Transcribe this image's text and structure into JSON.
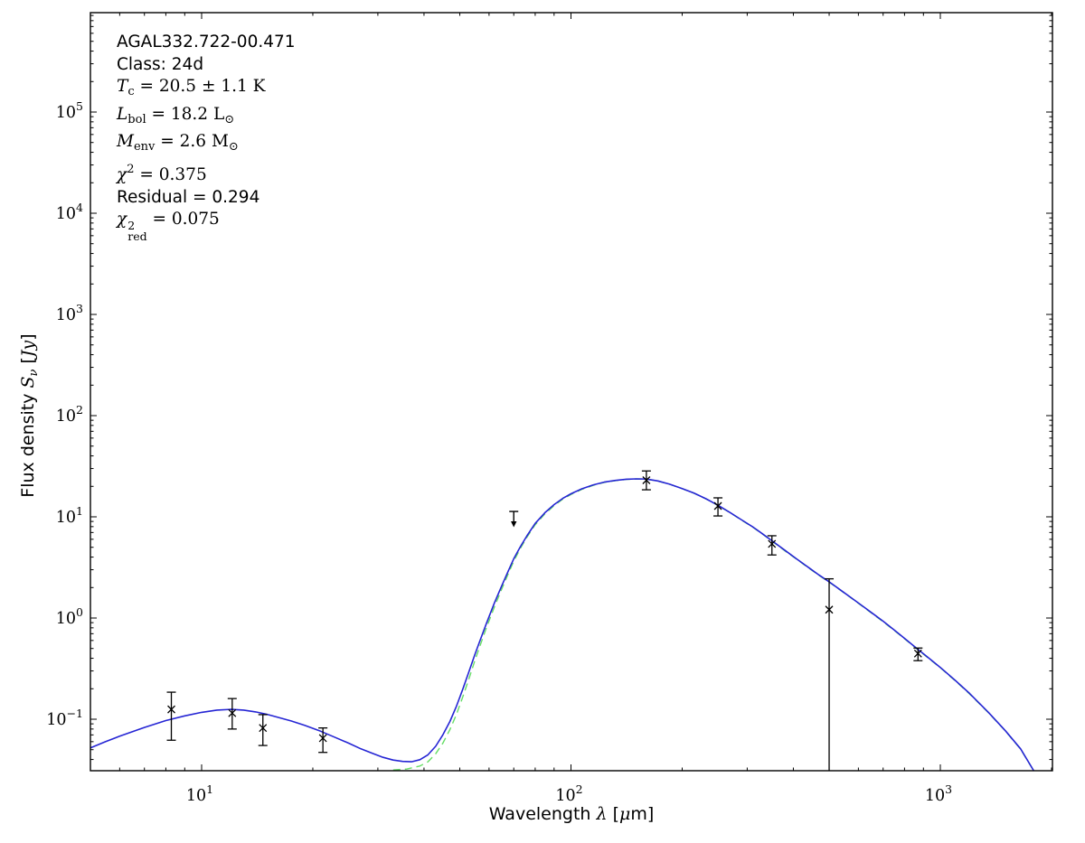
{
  "chart_data": {
    "type": "line",
    "title": "",
    "description": "Spectral energy distribution fit of a dust clump: greybody + warm component model over photometric data points, log-log axes",
    "background": "#ffffff",
    "axis_color": "#000000",
    "x_axis": {
      "scale": "log",
      "min": 5.0,
      "max": 2009,
      "major_ticks": [
        10,
        100,
        1000
      ],
      "tick_exponents": [
        "1",
        "2",
        "3"
      ],
      "label_segments": [
        {
          "t": "Wavelength ",
          "s": "sans"
        },
        {
          "t": "λ",
          "s": "it"
        },
        {
          "t": " [",
          "s": "sans"
        },
        {
          "t": "μ",
          "s": "it"
        },
        {
          "t": "m]",
          "s": "sans"
        }
      ]
    },
    "y_axis": {
      "scale": "log",
      "min": 0.031,
      "max": 950000,
      "major_ticks": [
        0.1,
        1,
        10,
        100,
        1000,
        10000,
        100000
      ],
      "tick_exponents": [
        "−1",
        "0",
        "1",
        "2",
        "3",
        "4",
        "5"
      ],
      "label_segments": [
        {
          "t": "Flux density ",
          "s": "sans"
        },
        {
          "t": "S",
          "s": "it"
        },
        {
          "t": "ν",
          "s": "subit"
        },
        {
          "t": " [",
          "s": "sans"
        },
        {
          "t": "Jy",
          "s": "it"
        },
        {
          "t": "]",
          "s": "sans"
        }
      ]
    },
    "series": [
      {
        "name": "greybody-component",
        "color": "#66de66",
        "style": "dashed",
        "width": 1.4,
        "points": [
          [
            33,
            0.0315
          ],
          [
            36,
            0.0322
          ],
          [
            39,
            0.0345
          ],
          [
            41,
            0.038
          ],
          [
            43,
            0.0455
          ],
          [
            45,
            0.058
          ],
          [
            47,
            0.079
          ],
          [
            49,
            0.112
          ],
          [
            51,
            0.168
          ],
          [
            53,
            0.255
          ],
          [
            55,
            0.385
          ],
          [
            57,
            0.56
          ],
          [
            59,
            0.8
          ],
          [
            62,
            1.28
          ],
          [
            65,
            1.95
          ],
          [
            68,
            2.87
          ],
          [
            70,
            3.65
          ],
          [
            73,
            4.9
          ],
          [
            76,
            6.3
          ],
          [
            80,
            8.35
          ],
          [
            85,
            10.7
          ],
          [
            90,
            12.9
          ],
          [
            95,
            14.95
          ],
          [
            100,
            16.6
          ],
          [
            107,
            18.7
          ],
          [
            115,
            20.5
          ],
          [
            123,
            21.9
          ],
          [
            132,
            22.8
          ],
          [
            141,
            23.4
          ],
          [
            150,
            23.65
          ],
          [
            160,
            23.55
          ],
          [
            172,
            22.55
          ],
          [
            185,
            20.95
          ],
          [
            200,
            18.95
          ],
          [
            215,
            17.15
          ],
          [
            232,
            15.05
          ],
          [
            250,
            12.95
          ],
          [
            270,
            10.95
          ],
          [
            290,
            9.25
          ],
          [
            310,
            7.95
          ],
          [
            330,
            6.75
          ],
          [
            350,
            5.75
          ],
          [
            380,
            4.6
          ],
          [
            410,
            3.77
          ],
          [
            440,
            3.12
          ],
          [
            470,
            2.63
          ],
          [
            500,
            2.26
          ],
          [
            540,
            1.85
          ],
          [
            580,
            1.53
          ],
          [
            620,
            1.28
          ],
          [
            660,
            1.08
          ],
          [
            700,
            0.92
          ],
          [
            750,
            0.755
          ],
          [
            800,
            0.625
          ],
          [
            870,
            0.485
          ],
          [
            940,
            0.387
          ],
          [
            1000,
            0.322
          ],
          [
            1100,
            0.238
          ],
          [
            1200,
            0.178
          ],
          [
            1350,
            0.116
          ],
          [
            1500,
            0.0765
          ],
          [
            1650,
            0.0505
          ],
          [
            1790,
            0.031
          ]
        ]
      },
      {
        "name": "model-total",
        "color": "#2525d4",
        "style": "solid",
        "width": 1.6,
        "points": [
          [
            5.0,
            0.052
          ],
          [
            5.5,
            0.06
          ],
          [
            6,
            0.068
          ],
          [
            7,
            0.083
          ],
          [
            8,
            0.097
          ],
          [
            9,
            0.108
          ],
          [
            10,
            0.117
          ],
          [
            11,
            0.123
          ],
          [
            12,
            0.125
          ],
          [
            13,
            0.123
          ],
          [
            14,
            0.118
          ],
          [
            15,
            0.112
          ],
          [
            16,
            0.105
          ],
          [
            17.5,
            0.096
          ],
          [
            19,
            0.087
          ],
          [
            21,
            0.076
          ],
          [
            23,
            0.066
          ],
          [
            25,
            0.058
          ],
          [
            27,
            0.051
          ],
          [
            29,
            0.046
          ],
          [
            31,
            0.042
          ],
          [
            33,
            0.0395
          ],
          [
            35,
            0.0383
          ],
          [
            37,
            0.038
          ],
          [
            39,
            0.0398
          ],
          [
            41,
            0.0445
          ],
          [
            43,
            0.054
          ],
          [
            45,
            0.07
          ],
          [
            47,
            0.095
          ],
          [
            49,
            0.135
          ],
          [
            51,
            0.2
          ],
          [
            53,
            0.3
          ],
          [
            55,
            0.44
          ],
          [
            57,
            0.63
          ],
          [
            59,
            0.88
          ],
          [
            62,
            1.4
          ],
          [
            65,
            2.1
          ],
          [
            68,
            3.05
          ],
          [
            70,
            3.85
          ],
          [
            73,
            5.1
          ],
          [
            76,
            6.5
          ],
          [
            80,
            8.6
          ],
          [
            85,
            11.0
          ],
          [
            90,
            13.2
          ],
          [
            95,
            15.2
          ],
          [
            100,
            16.9
          ],
          [
            107,
            18.9
          ],
          [
            115,
            20.7
          ],
          [
            123,
            22.0
          ],
          [
            132,
            22.9
          ],
          [
            141,
            23.5
          ],
          [
            150,
            23.7
          ],
          [
            160,
            23.6
          ],
          [
            172,
            22.6
          ],
          [
            185,
            21.0
          ],
          [
            200,
            19.0
          ],
          [
            215,
            17.2
          ],
          [
            232,
            15.1
          ],
          [
            250,
            13.0
          ],
          [
            270,
            11.0
          ],
          [
            290,
            9.3
          ],
          [
            310,
            8.0
          ],
          [
            330,
            6.8
          ],
          [
            350,
            5.8
          ],
          [
            380,
            4.65
          ],
          [
            410,
            3.8
          ],
          [
            440,
            3.15
          ],
          [
            470,
            2.65
          ],
          [
            500,
            2.28
          ],
          [
            540,
            1.86
          ],
          [
            580,
            1.54
          ],
          [
            620,
            1.29
          ],
          [
            660,
            1.09
          ],
          [
            700,
            0.93
          ],
          [
            750,
            0.76
          ],
          [
            800,
            0.63
          ],
          [
            870,
            0.49
          ],
          [
            940,
            0.39
          ],
          [
            1000,
            0.325
          ],
          [
            1100,
            0.24
          ],
          [
            1200,
            0.18
          ],
          [
            1350,
            0.117
          ],
          [
            1500,
            0.077
          ],
          [
            1650,
            0.051
          ],
          [
            1790,
            0.031
          ]
        ]
      }
    ],
    "measurements": [
      {
        "x": 8.28,
        "y": 0.125,
        "lo": 0.062,
        "hi": 0.185
      },
      {
        "x": 12.1,
        "y": 0.115,
        "lo": 0.08,
        "hi": 0.16
      },
      {
        "x": 14.65,
        "y": 0.082,
        "lo": 0.055,
        "hi": 0.111
      },
      {
        "x": 21.3,
        "y": 0.065,
        "lo": 0.047,
        "hi": 0.082
      },
      {
        "x": 160,
        "y": 23.0,
        "lo": 18.5,
        "hi": 28.4
      },
      {
        "x": 250,
        "y": 12.8,
        "lo": 10.2,
        "hi": 15.4
      },
      {
        "x": 350,
        "y": 5.4,
        "lo": 4.2,
        "hi": 6.5
      },
      {
        "x": 500,
        "y": 1.21,
        "lo": 0.031,
        "hi": 2.44,
        "no_lower_cap": true
      },
      {
        "x": 870,
        "y": 0.446,
        "lo": 0.379,
        "hi": 0.505
      }
    ],
    "upper_limits": [
      {
        "x": 70,
        "y": 11.3
      }
    ],
    "marker": {
      "shape": "x",
      "size": 4,
      "color": "#000000"
    },
    "annotation_lines": [
      {
        "name": "source-name",
        "segments": [
          {
            "t": "AGAL332.722-00.471",
            "s": "sans"
          }
        ]
      },
      {
        "name": "class-label",
        "segments": [
          {
            "t": "Class: 24d",
            "s": "sans"
          }
        ]
      },
      {
        "name": "dust-temperature",
        "segments": [
          {
            "t": "T",
            "s": "it"
          },
          {
            "t": "c",
            "s": "sub"
          },
          {
            "t": " = 20.5 ± 1.1 K",
            "s": "rm"
          }
        ]
      },
      {
        "name": "bolometric-luminosity",
        "segments": [
          {
            "t": "L",
            "s": "it"
          },
          {
            "t": "bol",
            "s": "sub"
          },
          {
            "t": " = 18.2 L",
            "s": "rm"
          },
          {
            "t": "⊙",
            "s": "sub"
          }
        ]
      },
      {
        "name": "envelope-mass",
        "segments": [
          {
            "t": "M",
            "s": "it"
          },
          {
            "t": "env",
            "s": "sub"
          },
          {
            "t": " = 2.6 M",
            "s": "rm"
          },
          {
            "t": "⊙",
            "s": "sub"
          }
        ]
      },
      {
        "name": "chi-squared",
        "segments": [
          {
            "t": "χ",
            "s": "it"
          },
          {
            "t": "2",
            "s": "sup"
          },
          {
            "t": " = 0.375",
            "s": "rm"
          }
        ]
      },
      {
        "name": "residual",
        "segments": [
          {
            "t": "Residual = 0.294",
            "s": "sans"
          }
        ]
      },
      {
        "name": "chi-squared-reduced",
        "segments": [
          {
            "t": "χ",
            "s": "it"
          },
          {
            "s": "supsub",
            "sup": "2",
            "sub": "red"
          },
          {
            "t": " = 0.075",
            "s": "rm"
          }
        ]
      }
    ]
  }
}
